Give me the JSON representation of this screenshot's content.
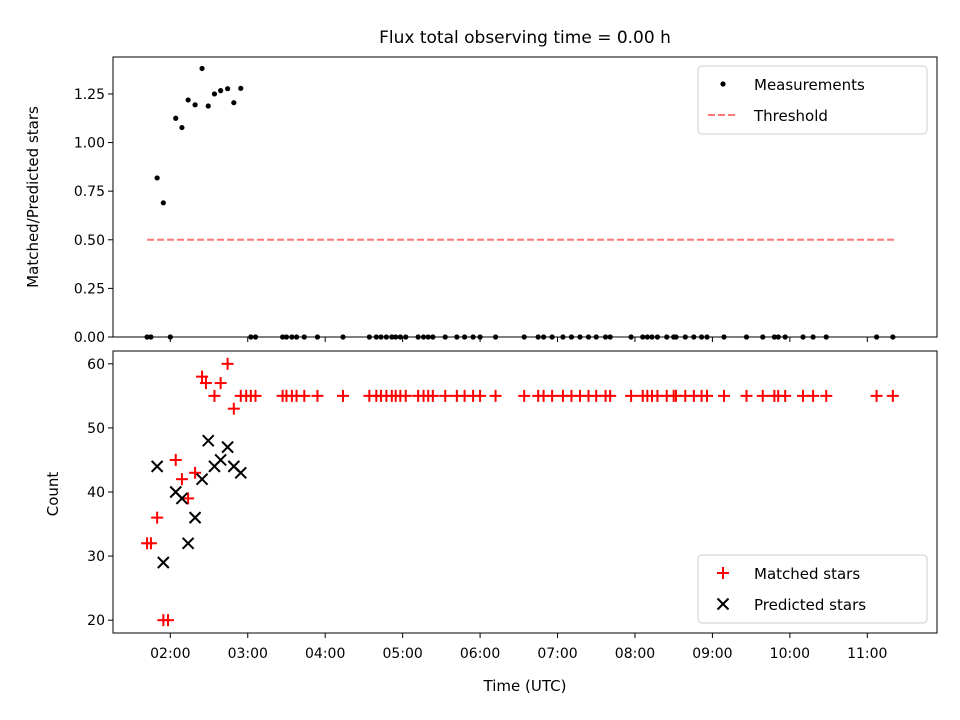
{
  "chart_data": [
    {
      "type": "scatter",
      "title": "Flux total observing time = 0.00 h",
      "xlabel": "",
      "ylabel": "Matched/Predicted stars",
      "xlim": [
        1.26,
        11.9
      ],
      "ylim": [
        0,
        1.44
      ],
      "y_ticks": [
        0.0,
        0.25,
        0.5,
        0.75,
        1.0,
        1.25
      ],
      "y_tick_labels": [
        "0.00",
        "0.25",
        "0.50",
        "0.75",
        "1.00",
        "1.25"
      ],
      "legend": "top-right",
      "series": [
        {
          "name": "Measurements",
          "color": "#000000",
          "marker": "dot",
          "points": [
            [
              1.7,
              0.0
            ],
            [
              1.75,
              0.0
            ],
            [
              1.83,
              0.818
            ],
            [
              1.91,
              0.69
            ],
            [
              2.0,
              0.0
            ],
            [
              2.07,
              1.125
            ],
            [
              2.15,
              1.077
            ],
            [
              2.23,
              1.219
            ],
            [
              2.32,
              1.194
            ],
            [
              2.41,
              1.381
            ],
            [
              2.49,
              1.188
            ],
            [
              2.57,
              1.25
            ],
            [
              2.65,
              1.267
            ],
            [
              2.74,
              1.277
            ],
            [
              2.82,
              1.205
            ],
            [
              2.91,
              1.279
            ],
            [
              3.04,
              0.0
            ],
            [
              3.1,
              0.0
            ],
            [
              3.45,
              0.0
            ],
            [
              3.5,
              0.0
            ],
            [
              3.57,
              0.0
            ],
            [
              3.63,
              0.0
            ],
            [
              3.73,
              0.0
            ],
            [
              3.9,
              0.0
            ],
            [
              4.23,
              0.0
            ],
            [
              4.57,
              0.0
            ],
            [
              4.66,
              0.0
            ],
            [
              4.72,
              0.0
            ],
            [
              4.79,
              0.0
            ],
            [
              4.86,
              0.0
            ],
            [
              4.91,
              0.0
            ],
            [
              4.97,
              0.0
            ],
            [
              5.04,
              0.0
            ],
            [
              5.2,
              0.0
            ],
            [
              5.27,
              0.0
            ],
            [
              5.33,
              0.0
            ],
            [
              5.39,
              0.0
            ],
            [
              5.55,
              0.0
            ],
            [
              5.7,
              0.0
            ],
            [
              5.8,
              0.0
            ],
            [
              5.91,
              0.0
            ],
            [
              6.0,
              0.0
            ],
            [
              6.2,
              0.0
            ],
            [
              6.57,
              0.0
            ],
            [
              6.75,
              0.0
            ],
            [
              6.82,
              0.0
            ],
            [
              6.93,
              0.0
            ],
            [
              7.07,
              0.0
            ],
            [
              7.18,
              0.0
            ],
            [
              7.29,
              0.0
            ],
            [
              7.4,
              0.0
            ],
            [
              7.5,
              0.0
            ],
            [
              7.62,
              0.0
            ],
            [
              7.68,
              0.0
            ],
            [
              7.95,
              0.0
            ],
            [
              8.1,
              0.0
            ],
            [
              8.16,
              0.0
            ],
            [
              8.22,
              0.0
            ],
            [
              8.29,
              0.0
            ],
            [
              8.41,
              0.0
            ],
            [
              8.5,
              0.0
            ],
            [
              8.53,
              0.0
            ],
            [
              8.65,
              0.0
            ],
            [
              8.76,
              0.0
            ],
            [
              8.86,
              0.0
            ],
            [
              8.93,
              0.0
            ],
            [
              9.15,
              0.0
            ],
            [
              9.44,
              0.0
            ],
            [
              9.65,
              0.0
            ],
            [
              9.8,
              0.0
            ],
            [
              9.85,
              0.0
            ],
            [
              9.94,
              0.0
            ],
            [
              10.17,
              0.0
            ],
            [
              10.3,
              0.0
            ],
            [
              10.47,
              0.0
            ],
            [
              11.12,
              0.0
            ],
            [
              11.33,
              0.0
            ]
          ]
        },
        {
          "name": "Threshold",
          "color": "#ff7777",
          "style": "dashed",
          "points": [
            [
              1.7,
              0.5
            ],
            [
              11.38,
              0.5
            ]
          ]
        }
      ]
    },
    {
      "type": "scatter",
      "title": "",
      "xlabel": "Time (UTC)",
      "ylabel": "Count",
      "xlim": [
        1.26,
        11.9
      ],
      "ylim": [
        18,
        62
      ],
      "x_ticks": [
        2,
        3,
        4,
        5,
        6,
        7,
        8,
        9,
        10,
        11
      ],
      "x_tick_labels": [
        "02:00",
        "03:00",
        "04:00",
        "05:00",
        "06:00",
        "07:00",
        "08:00",
        "09:00",
        "10:00",
        "11:00"
      ],
      "y_ticks": [
        20,
        30,
        40,
        50,
        60
      ],
      "y_tick_labels": [
        "20",
        "30",
        "40",
        "50",
        "60"
      ],
      "legend": "bottom-right",
      "series": [
        {
          "name": "Matched stars",
          "color": "#ff0000",
          "marker": "plus",
          "points": [
            [
              1.7,
              32
            ],
            [
              1.75,
              32
            ],
            [
              1.83,
              36
            ],
            [
              1.91,
              20
            ],
            [
              1.97,
              20
            ],
            [
              2.07,
              45
            ],
            [
              2.15,
              42
            ],
            [
              2.23,
              39
            ],
            [
              2.32,
              43
            ],
            [
              2.41,
              58
            ],
            [
              2.46,
              57
            ],
            [
              2.57,
              55
            ],
            [
              2.65,
              57
            ],
            [
              2.74,
              60
            ],
            [
              2.82,
              53
            ],
            [
              2.91,
              55
            ],
            [
              2.98,
              55
            ],
            [
              3.04,
              55
            ],
            [
              3.1,
              55
            ],
            [
              3.45,
              55
            ],
            [
              3.5,
              55
            ],
            [
              3.57,
              55
            ],
            [
              3.63,
              55
            ],
            [
              3.73,
              55
            ],
            [
              3.9,
              55
            ],
            [
              4.23,
              55
            ],
            [
              4.57,
              55
            ],
            [
              4.66,
              55
            ],
            [
              4.72,
              55
            ],
            [
              4.79,
              55
            ],
            [
              4.86,
              55
            ],
            [
              4.91,
              55
            ],
            [
              4.97,
              55
            ],
            [
              5.04,
              55
            ],
            [
              5.2,
              55
            ],
            [
              5.27,
              55
            ],
            [
              5.33,
              55
            ],
            [
              5.39,
              55
            ],
            [
              5.55,
              55
            ],
            [
              5.7,
              55
            ],
            [
              5.8,
              55
            ],
            [
              5.91,
              55
            ],
            [
              6.0,
              55
            ],
            [
              6.2,
              55
            ],
            [
              6.57,
              55
            ],
            [
              6.75,
              55
            ],
            [
              6.82,
              55
            ],
            [
              6.93,
              55
            ],
            [
              7.07,
              55
            ],
            [
              7.18,
              55
            ],
            [
              7.29,
              55
            ],
            [
              7.4,
              55
            ],
            [
              7.5,
              55
            ],
            [
              7.62,
              55
            ],
            [
              7.68,
              55
            ],
            [
              7.95,
              55
            ],
            [
              8.1,
              55
            ],
            [
              8.16,
              55
            ],
            [
              8.22,
              55
            ],
            [
              8.29,
              55
            ],
            [
              8.41,
              55
            ],
            [
              8.5,
              55
            ],
            [
              8.53,
              55
            ],
            [
              8.65,
              55
            ],
            [
              8.76,
              55
            ],
            [
              8.86,
              55
            ],
            [
              8.93,
              55
            ],
            [
              9.15,
              55
            ],
            [
              9.44,
              55
            ],
            [
              9.65,
              55
            ],
            [
              9.8,
              55
            ],
            [
              9.85,
              55
            ],
            [
              9.94,
              55
            ],
            [
              10.17,
              55
            ],
            [
              10.3,
              55
            ],
            [
              10.47,
              55
            ],
            [
              11.12,
              55
            ],
            [
              11.33,
              55
            ]
          ]
        },
        {
          "name": "Predicted stars",
          "color": "#000000",
          "marker": "x",
          "points": [
            [
              1.83,
              44
            ],
            [
              1.91,
              29
            ],
            [
              2.07,
              40
            ],
            [
              2.15,
              39
            ],
            [
              2.23,
              32
            ],
            [
              2.32,
              36
            ],
            [
              2.41,
              42
            ],
            [
              2.49,
              48
            ],
            [
              2.57,
              44
            ],
            [
              2.65,
              45
            ],
            [
              2.74,
              47
            ],
            [
              2.82,
              44
            ],
            [
              2.91,
              43
            ]
          ]
        }
      ]
    }
  ]
}
